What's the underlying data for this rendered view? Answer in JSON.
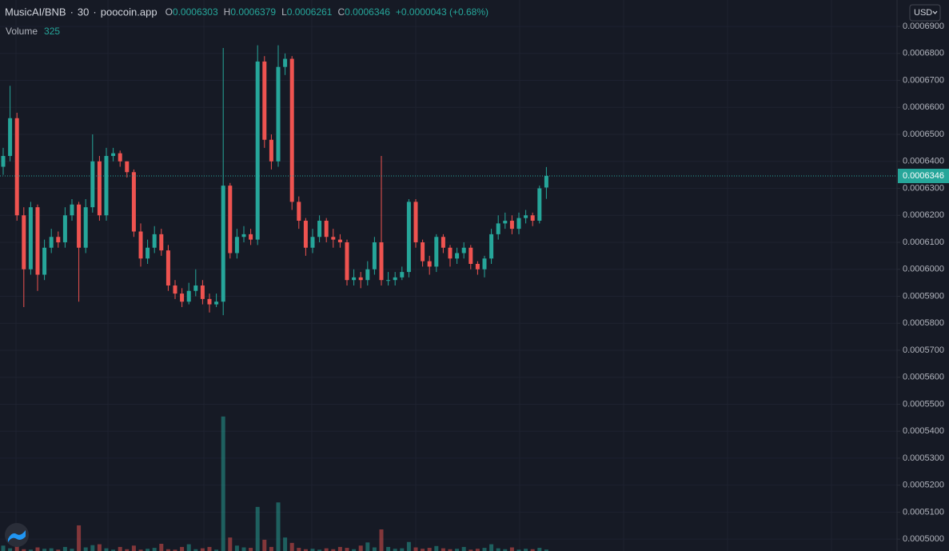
{
  "chart_data": {
    "type": "candlestick",
    "symbol": "MusicAI/BNB",
    "separator": "·",
    "interval": "30",
    "source": "poocoin.app",
    "legend_labels": [
      "O",
      "H",
      "L",
      "C"
    ],
    "change_label": "+0.0000043 (+0.68%)",
    "volume_label": "Volume",
    "currency": "USD",
    "up_color": "#26a69a",
    "down_color": "#ef5350",
    "grid": true,
    "ylim": [
      0.0004956,
      0.0006998
    ],
    "yticks": [
      {
        "value": 0.00069,
        "label": "0.0006900"
      },
      {
        "value": 0.00068,
        "label": "0.0006800"
      },
      {
        "value": 0.00067,
        "label": "0.0006700"
      },
      {
        "value": 0.00066,
        "label": "0.0006600"
      },
      {
        "value": 0.00065,
        "label": "0.0006500"
      },
      {
        "value": 0.00064,
        "label": "0.0006400"
      },
      {
        "value": 0.00063,
        "label": "0.0006300"
      },
      {
        "value": 0.00062,
        "label": "0.0006200"
      },
      {
        "value": 0.00061,
        "label": "0.0006100"
      },
      {
        "value": 0.0006,
        "label": "0.0006000"
      },
      {
        "value": 0.00059,
        "label": "0.0005900"
      },
      {
        "value": 0.00058,
        "label": "0.0005800"
      },
      {
        "value": 0.00057,
        "label": "0.0005700"
      },
      {
        "value": 0.00056,
        "label": "0.0005600"
      },
      {
        "value": 0.00055,
        "label": "0.0005500"
      },
      {
        "value": 0.00054,
        "label": "0.0005400"
      },
      {
        "value": 0.00053,
        "label": "0.0005300"
      },
      {
        "value": 0.00052,
        "label": "0.0005200"
      },
      {
        "value": 0.00051,
        "label": "0.0005100"
      },
      {
        "value": 0.0005,
        "label": "0.0005000"
      }
    ],
    "volume_lim": [
      0,
      40000
    ],
    "candles": {
      "open": [
        0.000638,
        0.000642,
        0.000656,
        0.00062,
        0.0006,
        0.000623,
        0.000598,
        0.000608,
        0.000612,
        0.00061,
        0.00062,
        0.000624,
        0.000608,
        0.000623,
        0.00064,
        0.00062,
        0.000642,
        0.000643,
        0.00064,
        0.000636,
        0.000614,
        0.000604,
        0.000608,
        0.000613,
        0.000607,
        0.000594,
        0.000591,
        0.000588,
        0.000592,
        0.000594,
        0.000589,
        0.000587,
        0.000588,
        0.000631,
        0.000606,
        0.000612,
        0.000613,
        0.000611,
        0.000677,
        0.000648,
        0.00064,
        0.000675,
        0.000678,
        0.000625,
        0.000618,
        0.000608,
        0.000612,
        0.000618,
        0.000612,
        0.000611,
        0.00061,
        0.000596,
        0.000597,
        0.000596,
        0.0006,
        0.00061,
        0.000596,
        0.000596,
        0.000597,
        0.000599,
        0.000625,
        0.00061,
        0.000603,
        0.000601,
        0.000612,
        0.000608,
        0.000604,
        0.000606,
        0.000608,
        0.000602,
        0.0006,
        0.000604,
        0.000613,
        0.000617,
        0.000618,
        0.000615,
        0.000619,
        0.00062,
        0.000618,
        0.0006303
      ],
      "high": [
        0.000645,
        0.000668,
        0.000658,
        0.000623,
        0.000625,
        0.000624,
        0.000611,
        0.000615,
        0.000614,
        0.000623,
        0.000626,
        0.000625,
        0.000626,
        0.00065,
        0.000642,
        0.000645,
        0.000645,
        0.000644,
        0.00064,
        0.000637,
        0.000617,
        0.000611,
        0.000616,
        0.000615,
        0.000609,
        0.000596,
        0.000593,
        0.000595,
        0.0006,
        0.000596,
        0.000591,
        0.000591,
        0.000682,
        0.000632,
        0.000615,
        0.000616,
        0.000615,
        0.000683,
        0.000679,
        0.00065,
        0.000683,
        0.00068,
        0.000679,
        0.000627,
        0.000619,
        0.000615,
        0.00062,
        0.000619,
        0.000615,
        0.000613,
        0.000611,
        0.0006,
        0.000599,
        0.000603,
        0.000612,
        0.000642,
        0.000599,
        0.000599,
        0.000601,
        0.000626,
        0.000626,
        0.000611,
        0.000605,
        0.000613,
        0.000613,
        0.000609,
        0.000608,
        0.00061,
        0.000609,
        0.000603,
        0.000605,
        0.000615,
        0.00062,
        0.000621,
        0.00062,
        0.000621,
        0.000622,
        0.000621,
        0.000631,
        0.0006379
      ],
      "low": [
        0.000635,
        0.00064,
        0.000618,
        0.000586,
        0.000598,
        0.000592,
        0.000596,
        0.000606,
        0.000608,
        0.000608,
        0.000618,
        0.000588,
        0.000606,
        0.000621,
        0.000618,
        0.000618,
        0.00064,
        0.000638,
        0.000634,
        0.000612,
        0.000601,
        0.000602,
        0.000606,
        0.000605,
        0.000592,
        0.000589,
        0.000586,
        0.000587,
        0.00059,
        0.000587,
        0.000584,
        0.000586,
        0.000583,
        0.000604,
        0.000604,
        0.00061,
        0.000609,
        0.000609,
        0.000645,
        0.000637,
        0.000638,
        0.000672,
        0.000622,
        0.000615,
        0.000605,
        0.000606,
        0.00061,
        0.00061,
        0.000608,
        0.000608,
        0.000594,
        0.000594,
        0.000593,
        0.000594,
        0.000598,
        0.000594,
        0.000594,
        0.000594,
        0.000596,
        0.000597,
        0.000608,
        0.000601,
        0.000598,
        0.000599,
        0.000606,
        0.000601,
        0.000602,
        0.000604,
        0.0006,
        0.000598,
        0.000597,
        0.000602,
        0.000611,
        0.000615,
        0.000613,
        0.000613,
        0.000617,
        0.000616,
        0.000617,
        0.0006261
      ],
      "close": [
        0.000642,
        0.000656,
        0.00062,
        0.0006,
        0.000623,
        0.000598,
        0.000608,
        0.000612,
        0.00061,
        0.00062,
        0.000624,
        0.000608,
        0.000623,
        0.00064,
        0.00062,
        0.000642,
        0.000643,
        0.00064,
        0.000636,
        0.000614,
        0.000604,
        0.000608,
        0.000613,
        0.000607,
        0.000594,
        0.000591,
        0.000588,
        0.000592,
        0.000594,
        0.000589,
        0.000587,
        0.000588,
        0.000631,
        0.000606,
        0.000612,
        0.000613,
        0.000611,
        0.000677,
        0.000648,
        0.00064,
        0.000675,
        0.000678,
        0.000625,
        0.000618,
        0.000608,
        0.000612,
        0.000618,
        0.000612,
        0.000611,
        0.00061,
        0.000596,
        0.000597,
        0.000596,
        0.0006,
        0.00061,
        0.000596,
        0.000596,
        0.000597,
        0.000599,
        0.000625,
        0.00061,
        0.000603,
        0.000601,
        0.000612,
        0.000608,
        0.000604,
        0.000606,
        0.000608,
        0.000602,
        0.0006,
        0.000604,
        0.000613,
        0.000617,
        0.000618,
        0.000615,
        0.000619,
        0.00062,
        0.000618,
        0.00063,
        0.0006346
      ]
    },
    "volume": [
      1200,
      600,
      1500,
      400,
      300,
      800,
      500,
      600,
      300,
      900,
      500,
      5700,
      800,
      1300,
      1500,
      600,
      300,
      900,
      400,
      1200,
      300,
      500,
      700,
      1600,
      400,
      300,
      900,
      1500,
      400,
      600,
      900,
      300,
      29900,
      3000,
      1200,
      800,
      700,
      9800,
      2500,
      900,
      10800,
      3000,
      1800,
      700,
      400,
      500,
      300,
      600,
      400,
      900,
      700,
      400,
      1200,
      1900,
      800,
      4800,
      900,
      500,
      600,
      2000,
      800,
      500,
      700,
      1100,
      600,
      400,
      500,
      900,
      300,
      500,
      700,
      1500,
      600,
      400,
      800,
      300,
      500,
      400,
      700,
      325
    ]
  }
}
